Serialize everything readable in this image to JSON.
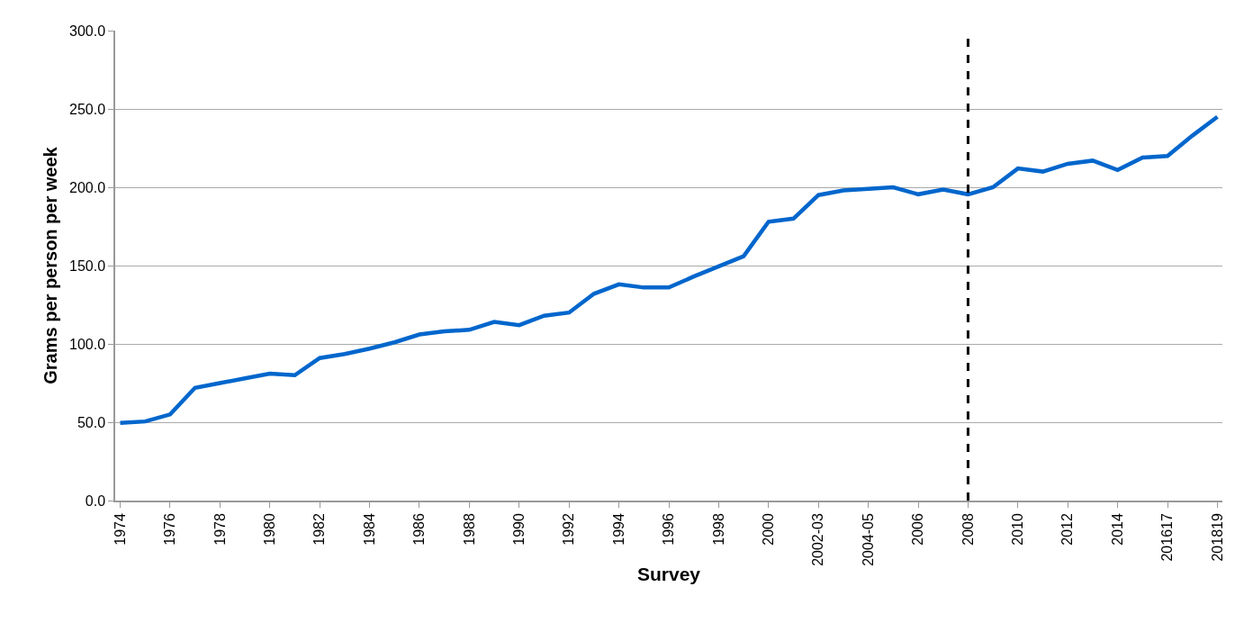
{
  "chart_data": {
    "type": "line",
    "xlabel": "Survey",
    "ylabel": "Grams per person per week",
    "categories": [
      "1974",
      null,
      "1976",
      null,
      "1978",
      null,
      "1980",
      null,
      "1982",
      null,
      "1984",
      null,
      "1986",
      null,
      "1988",
      null,
      "1990",
      null,
      "1992",
      null,
      "1994",
      null,
      "1996",
      null,
      "1998",
      null,
      "2000",
      null,
      "2002-03",
      null,
      "2004-05",
      null,
      "2006",
      null,
      "2008",
      null,
      "2010",
      null,
      "2012",
      null,
      "2014",
      null,
      "201617",
      null,
      "201819"
    ],
    "series": [
      {
        "color": "#0066cc",
        "values": [
          49.5,
          50.5,
          55,
          72,
          75,
          78,
          81,
          80,
          91,
          93.5,
          97,
          101,
          106,
          108,
          109,
          114,
          112,
          118,
          120,
          132,
          138,
          136,
          136,
          143,
          149.5,
          156,
          178,
          180,
          195,
          198,
          199,
          200,
          195.5,
          198.5,
          195.5,
          200,
          212,
          210,
          215,
          217,
          211,
          219,
          220,
          233,
          245
        ]
      }
    ],
    "ylim": [
      0,
      300
    ],
    "yticks": [
      {
        "value": 0,
        "label": "0.0"
      },
      {
        "value": 50,
        "label": "50.0"
      },
      {
        "value": 100,
        "label": "100.0"
      },
      {
        "value": 150,
        "label": "150.0"
      },
      {
        "value": 200,
        "label": "200.0"
      },
      {
        "value": 250,
        "label": "250.0"
      },
      {
        "value": 300,
        "label": "300.0"
      }
    ],
    "ref_lines": [
      {
        "axis": "x",
        "value": "2008",
        "color": "#000000",
        "line_style": "dashed"
      }
    ],
    "grid": "y",
    "marker": "none",
    "line_style": "solid"
  }
}
